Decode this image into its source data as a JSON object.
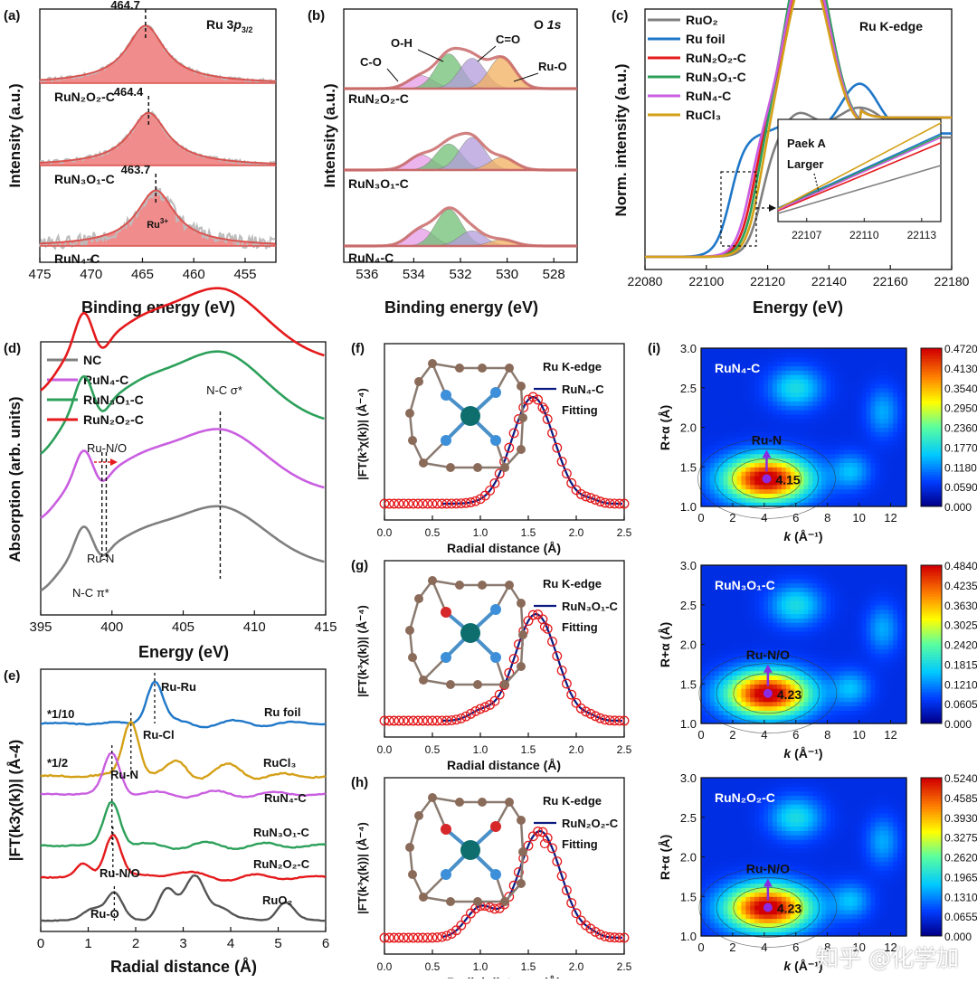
{
  "watermark": "知乎 @化学加",
  "colors": {
    "red_fill": "#f08080",
    "red_line": "#d9534f",
    "gray": "#7f7f7f",
    "blue": "#1f77c8",
    "red": "#e41a1c",
    "green": "#2ca05a",
    "violet": "#c95ee0",
    "gold": "#d4a017",
    "navy": "#0a1a80",
    "purple": "#8a2be2",
    "ru": "#0e6e6e",
    "n_atom": "#3d8fd9",
    "c_atom": "#8a6a58",
    "o_atom": "#d62828"
  },
  "chart_data": [
    {
      "id": "a",
      "type": "line",
      "label": "(a)",
      "title": "Ru 3p3/2",
      "title_base": "Ru 3",
      "title_sub": "p",
      "title_subscript": "3/2",
      "xlabel": "Binding energy (eV)",
      "ylabel": "Intensity (a.u.)",
      "xlim": [
        475,
        452
      ],
      "xticks": [
        475,
        470,
        465,
        460,
        455
      ],
      "series": [
        {
          "name": "RuN2O2-C",
          "center": 464.7,
          "peak_label": "464.7"
        },
        {
          "name": "RuN3O1-C",
          "center": 464.4,
          "peak_label": "464.4"
        },
        {
          "name": "RuN4-C",
          "center": 463.7,
          "peak_label": "463.7",
          "annotation": "Ru3+",
          "annotation_base": "Ru",
          "annotation_sup": "3+"
        }
      ],
      "series_labels": [
        "RuN₂O₂-C",
        "RuN₃O₁-C",
        "RuN₄-C"
      ]
    },
    {
      "id": "b",
      "type": "area",
      "label": "(b)",
      "title": "O 1s",
      "xlabel": "Binding energy (eV)",
      "ylabel": "Intensity (a.u.)",
      "xlim": [
        537,
        527
      ],
      "xticks": [
        536,
        534,
        532,
        530,
        528
      ],
      "components": [
        {
          "name": "C-O",
          "center": 533.7
        },
        {
          "name": "O-H",
          "center": 532.5
        },
        {
          "name": "C=O",
          "center": 531.5
        },
        {
          "name": "Ru-O",
          "center": 530.2
        }
      ],
      "series": [
        {
          "name": "RuN2O2-C",
          "amplitudes": [
            0.3,
            0.8,
            0.7,
            0.75
          ]
        },
        {
          "name": "RuN3O1-C",
          "amplitudes": [
            0.35,
            0.6,
            0.75,
            0.3
          ]
        },
        {
          "name": "RuN4-C",
          "amplitudes": [
            0.4,
            0.85,
            0.35,
            0.15
          ]
        }
      ],
      "series_labels": [
        "RuN₂O₂-C",
        "RuN₃O₁-C",
        "RuN₄-C"
      ]
    },
    {
      "id": "c",
      "type": "line",
      "label": "(c)",
      "title": "Ru K-edge",
      "xlabel": "Energy (eV)",
      "ylabel": "Norm. intensity (a.u.)",
      "xlim": [
        22080,
        22180
      ],
      "xticks": [
        22080,
        22100,
        22120,
        22140,
        22160,
        22180
      ],
      "legend_position": "top-left",
      "series": [
        {
          "name": "RuO2",
          "edge": 22118
        },
        {
          "name": "Ru foil",
          "edge": 22108
        },
        {
          "name": "RuN2O2-C",
          "edge": 22115
        },
        {
          "name": "RuN3O1-C",
          "edge": 22116
        },
        {
          "name": "RuN4-C",
          "edge": 22114
        },
        {
          "name": "RuCl3",
          "edge": 22117
        }
      ],
      "legend_labels": [
        "RuO₂",
        "Ru foil",
        "RuN₂O₂-C",
        "RuN₃O₁-C",
        "RuN₄-C",
        "RuCl₃"
      ],
      "inset": {
        "xticks": [
          22107,
          22110,
          22113
        ],
        "annotation_line1": "Paek A",
        "annotation_line2": "Larger"
      }
    },
    {
      "id": "d",
      "type": "line",
      "label": "(d)",
      "xlabel": "Energy (eV)",
      "ylabel": "Absorption (arb. units)",
      "xlim": [
        395,
        415
      ],
      "xticks": [
        395,
        400,
        405,
        410,
        415
      ],
      "legend_position": "top-left",
      "series": [
        {
          "name": "NC"
        },
        {
          "name": "RuN4-C"
        },
        {
          "name": "RuN3O1-C"
        },
        {
          "name": "RuN2O2-C"
        }
      ],
      "legend_labels": [
        "NC",
        "RuN₄-C",
        "RuN₃O₁-C",
        "RuN₂O₂-C"
      ],
      "annotations": [
        "N-C σ*",
        "Ru-N/O",
        "Ru-N",
        "N-C π*"
      ],
      "markers": [
        399.3,
        399.6,
        407.6
      ]
    },
    {
      "id": "e",
      "type": "line",
      "label": "(e)",
      "xlabel": "Radial distance (Å)",
      "ylabel": "|FT(k3χ(k))| (Å-4)",
      "xlim": [
        0,
        6
      ],
      "xticks": [
        0,
        1,
        2,
        3,
        4,
        5,
        6
      ],
      "series": [
        {
          "name": "Ru foil",
          "peak": 2.4
        },
        {
          "name": "RuCl3",
          "peak": 1.9
        },
        {
          "name": "RuN4-C",
          "peak": 1.5
        },
        {
          "name": "RuN3O1-C",
          "peak": 1.5
        },
        {
          "name": "RuN2O2-C",
          "peak": 1.52
        },
        {
          "name": "RuO2",
          "peak": 1.55
        }
      ],
      "series_labels": [
        "Ru foil",
        "RuCl₃",
        "RuN₄-C",
        "RuN₃O₁-C",
        "RuN₂O₂-C",
        "RuO₂"
      ],
      "annotations": [
        "Ru-Ru",
        "Ru-Cl",
        "Ru-N",
        "Ru-N/O",
        "Ru-O"
      ],
      "scale_notes": [
        "*1/10",
        "*1/2"
      ]
    },
    {
      "id": "f",
      "type": "scatter",
      "label": "(f)",
      "title": "Ru K-edge",
      "xlabel": "Radial distance (Å)",
      "ylabel": "|FT(k3χ(k))| (Å-4)",
      "xlim": [
        0,
        2.5
      ],
      "xticks": [
        0.0,
        0.5,
        1.0,
        1.5,
        2.0,
        2.5
      ],
      "series": [
        {
          "name": "RuN4-C",
          "type": "line"
        },
        {
          "name": "Fitting",
          "type": "scatter"
        }
      ],
      "legend_labels": [
        "RuN₄-C",
        "Fitting"
      ],
      "peak": 1.55
    },
    {
      "id": "g",
      "type": "scatter",
      "label": "(g)",
      "title": "Ru K-edge",
      "xlabel": "Radial distance (Å)",
      "ylabel": "|FT(k3χ(k))| (Å-4)",
      "xlim": [
        0,
        2.5
      ],
      "xticks": [
        0.0,
        0.5,
        1.0,
        1.5,
        2.0,
        2.5
      ],
      "series": [
        {
          "name": "RuN3O1-C",
          "type": "line"
        },
        {
          "name": "Fitting",
          "type": "scatter"
        }
      ],
      "legend_labels": [
        "RuN₃O₁-C",
        "Fitting"
      ],
      "peak": 1.58
    },
    {
      "id": "h",
      "type": "scatter",
      "label": "(h)",
      "title": "Ru K-edge",
      "xlabel": "Radial distance (Å)",
      "ylabel": "|FT(k3χ(k))| (Å-4)",
      "xlim": [
        0,
        2.5
      ],
      "xticks": [
        0.0,
        0.5,
        1.0,
        1.5,
        2.0,
        2.5
      ],
      "series": [
        {
          "name": "RuN2O2-C",
          "type": "line"
        },
        {
          "name": "Fitting",
          "type": "scatter"
        }
      ],
      "legend_labels": [
        "RuN₂O₂-C",
        "Fitting"
      ],
      "peak": 1.62
    },
    {
      "id": "i",
      "type": "heatmap",
      "label": "(i)",
      "xlabel": "k (Å-1)",
      "ylabel": "R+α (Å)",
      "xlim": [
        0,
        13
      ],
      "ylim": [
        1.0,
        3.0
      ],
      "xticks": [
        0,
        2,
        4,
        6,
        8,
        10,
        12
      ],
      "yticks": [
        1.0,
        1.5,
        2.0,
        2.5,
        3.0
      ],
      "maps": [
        {
          "name": "RuN4-C",
          "bond": "Ru-N",
          "k_max": 4.15,
          "r_max": 1.35,
          "max_label": "4.15",
          "colorbar": [
            "0.4720",
            "0.4130",
            "0.3540",
            "0.2950",
            "0.2360",
            "0.1770",
            "0.1180",
            "0.05900",
            "0.000"
          ]
        },
        {
          "name": "RuN3O1-C",
          "bond": "Ru-N/O",
          "k_max": 4.23,
          "r_max": 1.38,
          "max_label": "4.23",
          "colorbar": [
            "0.4840",
            "0.4235",
            "0.3630",
            "0.3025",
            "0.2420",
            "0.1815",
            "0.1210",
            "0.0605",
            "0.000"
          ]
        },
        {
          "name": "RuN2O2-C",
          "bond": "Ru-N/O",
          "k_max": 4.23,
          "r_max": 1.36,
          "max_label": "4.23",
          "colorbar": [
            "0.5240",
            "0.4585",
            "0.3930",
            "0.3275",
            "0.2620",
            "0.1965",
            "0.1310",
            "0.0655",
            "0.000"
          ]
        }
      ],
      "map_labels": [
        "RuN₄-C",
        "RuN₃O₁-C",
        "RuN₂O₂-C"
      ]
    }
  ]
}
